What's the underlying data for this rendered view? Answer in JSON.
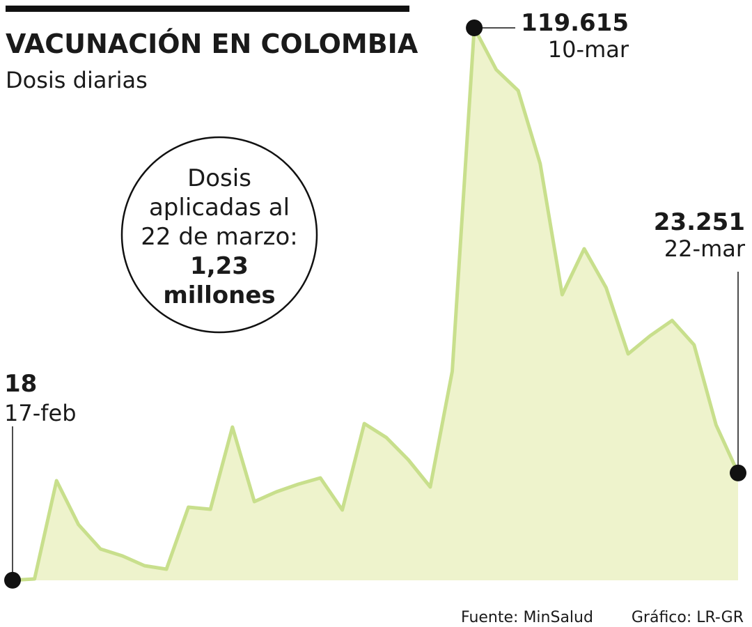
{
  "chart_data": {
    "type": "area",
    "title": "VACUNACIÓN EN COLOMBIA",
    "subtitle": "Dosis diarias",
    "categories": [
      "17-feb",
      null,
      null,
      null,
      null,
      null,
      null,
      null,
      null,
      null,
      null,
      null,
      null,
      null,
      null,
      null,
      null,
      null,
      null,
      null,
      null,
      "10-mar",
      null,
      null,
      null,
      null,
      null,
      null,
      null,
      null,
      null,
      null,
      null,
      "22-mar"
    ],
    "values": [
      18,
      300,
      21570,
      12070,
      6790,
      5280,
      3170,
      2410,
      15840,
      15380,
      33180,
      17040,
      19160,
      20810,
      22170,
      15230,
      33940,
      30920,
      26090,
      20210,
      45250,
      119615,
      110560,
      106030,
      90200,
      61840,
      71790,
      63350,
      49020,
      52940,
      56260,
      50980,
      33630,
      23251
    ],
    "value_labels": [
      "18",
      null,
      null,
      null,
      null,
      null,
      null,
      null,
      null,
      null,
      null,
      null,
      null,
      null,
      null,
      null,
      null,
      null,
      null,
      null,
      null,
      "119.615",
      null,
      null,
      null,
      null,
      null,
      null,
      null,
      null,
      null,
      null,
      null,
      "23.251"
    ],
    "color": "#c8df8c",
    "fill_color": "#eef3cc",
    "annotation": {
      "lines": [
        "Dosis",
        "aplicadas al",
        "22 de marzo:"
      ],
      "highlight": [
        "1,23",
        "millones"
      ]
    },
    "source": "Fuente: MinSalud",
    "credit": "Gráfico: LR-GR"
  }
}
